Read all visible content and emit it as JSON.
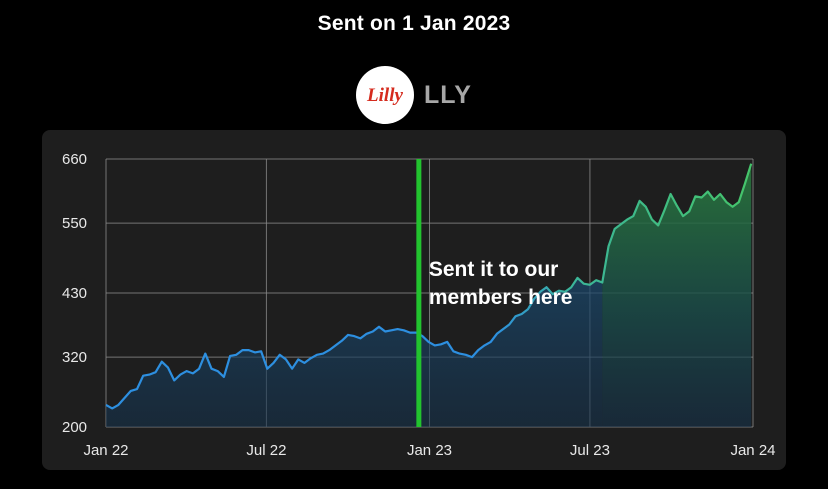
{
  "header": {
    "title": "Sent on 1 Jan 2023",
    "ticker": "LLY",
    "logo_text": "Lilly"
  },
  "colors": {
    "background": "#000000",
    "panel": "#1e1e1e",
    "grid": "#8a8a8a",
    "line_before": "#2d8fe0",
    "line_after": "#3fbf72",
    "marker": "#22c32e",
    "logo_red": "#d52b1e"
  },
  "chart_data": {
    "type": "area",
    "title": "",
    "xlabel": "",
    "ylabel": "",
    "x_ticks": [
      "Jan 22",
      "Jul 22",
      "Jan 23",
      "Jul 23",
      "Jan 24"
    ],
    "y_ticks": [
      200,
      320,
      430,
      550,
      660
    ],
    "ylim": [
      200,
      660
    ],
    "xlim": [
      "2022-01-01",
      "2024-01-01"
    ],
    "grid": true,
    "marker_date": "2022-12-20",
    "annotation": [
      "Sent it to our",
      "members here"
    ],
    "series": [
      {
        "x": [
          "2022-01-01",
          "2022-01-08",
          "2022-01-15",
          "2022-01-22",
          "2022-01-29",
          "2022-02-05",
          "2022-02-12",
          "2022-02-19",
          "2022-02-26",
          "2022-03-05",
          "2022-03-12",
          "2022-03-19",
          "2022-03-26",
          "2022-04-02",
          "2022-04-09",
          "2022-04-16",
          "2022-04-23",
          "2022-04-30",
          "2022-05-07",
          "2022-05-14",
          "2022-05-21",
          "2022-05-28",
          "2022-06-04",
          "2022-06-11",
          "2022-06-18",
          "2022-06-25",
          "2022-07-02",
          "2022-07-09",
          "2022-07-16",
          "2022-07-23",
          "2022-07-30",
          "2022-08-06",
          "2022-08-13",
          "2022-08-20",
          "2022-08-27",
          "2022-09-03",
          "2022-09-10",
          "2022-09-17",
          "2022-09-24",
          "2022-10-01",
          "2022-10-08",
          "2022-10-15",
          "2022-10-22",
          "2022-10-29",
          "2022-11-05",
          "2022-11-12",
          "2022-11-19",
          "2022-11-26",
          "2022-12-03",
          "2022-12-10",
          "2022-12-17",
          "2022-12-24",
          "2022-12-31",
          "2023-01-07",
          "2023-01-14",
          "2023-01-21",
          "2023-01-28",
          "2023-02-04",
          "2023-02-11",
          "2023-02-18",
          "2023-02-25",
          "2023-03-04",
          "2023-03-11",
          "2023-03-18",
          "2023-03-25",
          "2023-04-01",
          "2023-04-08",
          "2023-04-15",
          "2023-04-22",
          "2023-04-29",
          "2023-05-06",
          "2023-05-13",
          "2023-05-20",
          "2023-05-27",
          "2023-06-03",
          "2023-06-10",
          "2023-06-17",
          "2023-06-24",
          "2023-07-01",
          "2023-07-08",
          "2023-07-15",
          "2023-07-22",
          "2023-07-29",
          "2023-08-05",
          "2023-08-12",
          "2023-08-19",
          "2023-08-26",
          "2023-09-02",
          "2023-09-09",
          "2023-09-16",
          "2023-09-23",
          "2023-09-30",
          "2023-10-07",
          "2023-10-14",
          "2023-10-21",
          "2023-10-28",
          "2023-11-04",
          "2023-11-11",
          "2023-11-18",
          "2023-11-25",
          "2023-12-02",
          "2023-12-09",
          "2023-12-16",
          "2023-12-23",
          "2023-12-30"
        ],
        "y": [
          238,
          232,
          238,
          250,
          262,
          265,
          288,
          290,
          294,
          312,
          302,
          280,
          290,
          296,
          292,
          300,
          326,
          300,
          296,
          286,
          322,
          324,
          332,
          332,
          328,
          330,
          300,
          310,
          324,
          316,
          300,
          316,
          310,
          318,
          324,
          326,
          332,
          340,
          348,
          358,
          356,
          352,
          360,
          364,
          372,
          364,
          366,
          368,
          366,
          362,
          362,
          356,
          346,
          340,
          342,
          346,
          330,
          326,
          324,
          320,
          332,
          340,
          346,
          360,
          368,
          376,
          390,
          394,
          402,
          420,
          432,
          440,
          428,
          434,
          432,
          440,
          456,
          446,
          444,
          452,
          448,
          510,
          540,
          548,
          556,
          562,
          588,
          578,
          556,
          546,
          572,
          600,
          580,
          562,
          570,
          596,
          594,
          604,
          590,
          600,
          586,
          578,
          586,
          618,
          652
        ]
      }
    ]
  }
}
